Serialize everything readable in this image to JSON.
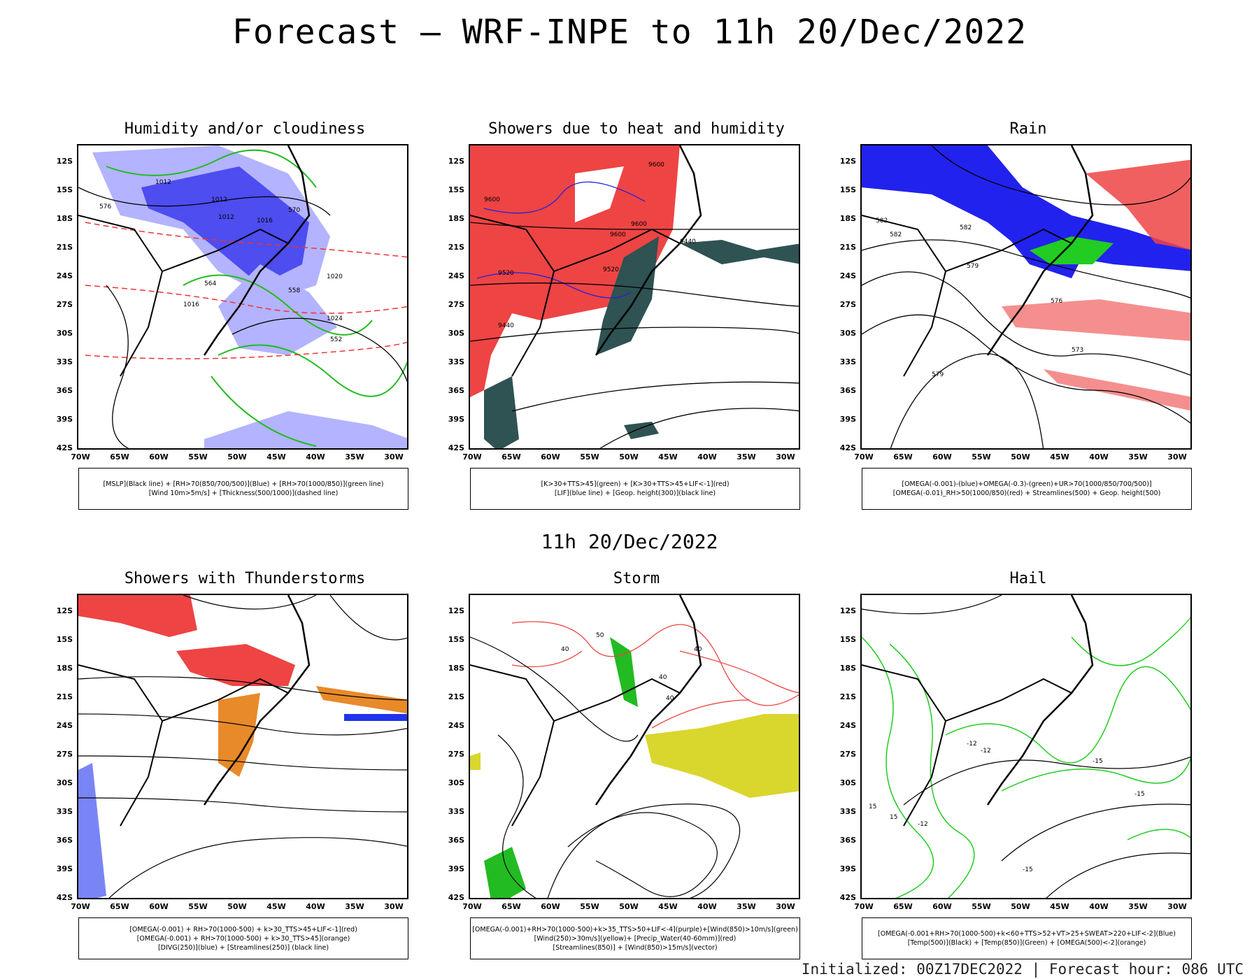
{
  "title": "Forecast – WRF-INPE to 11h 20/Dec/2022",
  "subtitle": "11h 20/Dec/2022",
  "footer": "Initialized: 00Z17DEC2022 | Forecast hour: 086 UTC",
  "lat_labels": [
    "12S",
    "15S",
    "18S",
    "21S",
    "24S",
    "27S",
    "30S",
    "33S",
    "36S",
    "39S",
    "42S"
  ],
  "lon_labels": [
    "70W",
    "65W",
    "60W",
    "55W",
    "50W",
    "45W",
    "40W",
    "35W",
    "30W"
  ],
  "panels": [
    {
      "title": "Humidity and/or cloudiness",
      "legend": [
        "[MSLP](Black line) + [RH>70(850/700/500)](Blue) + [RH>70(1000/850)](green line)",
        "[Wind 10m>5m/s] + [Thickness(500/1000)](dashed line)"
      ],
      "contour_labels": [
        "1012",
        "1012",
        "1012",
        "1016",
        "1020",
        "1024",
        "1016",
        "576",
        "570",
        "564",
        "558",
        "552"
      ],
      "colors": {
        "fill1": "#b3b3ff",
        "fill2": "#4d4df0",
        "line": "#22bb22",
        "dash": "#e33"
      }
    },
    {
      "title": "Showers due to heat and humidity",
      "legend": [
        "[K>30+TTS>45](green) + [K>30+TTS>45+LIF<-1](red)",
        "[LIF](blue line) + [Geop. height(300)](black line)"
      ],
      "contour_labels": [
        "9600",
        "9600",
        "9600",
        "9520",
        "9520",
        "9440",
        "9440",
        "9600"
      ],
      "colors": {
        "fill1": "#ee4444",
        "fill2": "#2f5252",
        "line": "#2222dd"
      }
    },
    {
      "title": "Rain",
      "legend": [
        "[OMEGA(-0.001)-(blue)+OMEGA(-0.3)-(green)+UR>70(1000/850/700/500)]",
        "[OMEGA(-0.01)_RH>50(1000/850)(red) + Streamlines(500) + Geop. height(500)"
      ],
      "contour_labels": [
        "582",
        "582",
        "582",
        "579",
        "576",
        "573",
        "579"
      ],
      "colors": {
        "fill1": "#2222ee",
        "fill2": "#22cc22",
        "dash": "#ee4444"
      }
    },
    {
      "title": "Showers with Thunderstorms",
      "legend": [
        "[OMEGA(-0.001) + RH>70(1000-500) + k>30_TTS>45+LIF<-1](red)",
        "[OMEGA(-0.001) + RH>70(1000-500) + k>30_TTS>45](orange)",
        "[DIVG(250)](blue) + [Streamlines(250)] (black line)"
      ],
      "colors": {
        "fill1": "#ee4444",
        "fill2": "#e88a2a",
        "dash": "#2233ee"
      }
    },
    {
      "title": "Storm",
      "legend": [
        "[OMEGA(-0.001)+RH>70(1000-500)+k>35_TTS>50+LIF<-4](purple)+[Wind(850)>10m/s](green)",
        "[Wind(250)>30m/s](yellow)+ [Precip_Water(40-60mm)](red)",
        "[Streamlines(850)] + [Wind(850)>15m/s](vector)"
      ],
      "contour_labels": [
        "40",
        "40",
        "50",
        "40",
        "40"
      ],
      "colors": {
        "fill1": "#d9d62e",
        "fill2": "#22bb22",
        "line": "#ee4444"
      }
    },
    {
      "title": "Hail",
      "legend": [
        "[OMEGA(-0.001+RH>70(1000-500)+k<60+TTS>52+VT>25+SWEAT>220+LIF<-2](Blue)",
        "[Temp(500)](Black) + [Temp(850)](Green) + [OMEGA(500)<-2](orange)"
      ],
      "contour_labels": [
        "-12",
        "-12",
        "-15",
        "-12",
        "-15",
        "15",
        "15",
        "-15"
      ],
      "colors": {
        "fill1": "#e88a2a",
        "line": "#22cc22"
      }
    }
  ]
}
